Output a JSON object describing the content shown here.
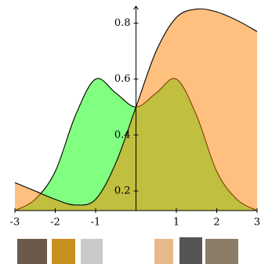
{
  "chart_data": {
    "type": "area",
    "x": [
      -3,
      -2.5,
      -2,
      -1.5,
      -1,
      -0.5,
      0,
      0.5,
      1,
      1.5,
      2,
      2.5,
      3
    ],
    "series": [
      {
        "color": "#80ff80",
        "values": [
          0.13,
          0.17,
          0.27,
          0.47,
          0.6,
          0.55,
          0.5,
          0.55,
          0.6,
          0.47,
          0.27,
          0.17,
          0.13
        ]
      },
      {
        "color": "#ff8000",
        "values": [
          0.23,
          0.2,
          0.17,
          0.15,
          0.17,
          0.3,
          0.5,
          0.7,
          0.82,
          0.85,
          0.84,
          0.81,
          0.77
        ]
      }
    ],
    "xlim": [
      -3,
      3
    ],
    "xticks": [
      -3,
      -2,
      -1,
      1,
      2,
      3
    ],
    "ylim": [
      0.13,
      0.86
    ],
    "yticks": [
      0.2,
      0.4,
      0.6,
      0.8
    ]
  }
}
